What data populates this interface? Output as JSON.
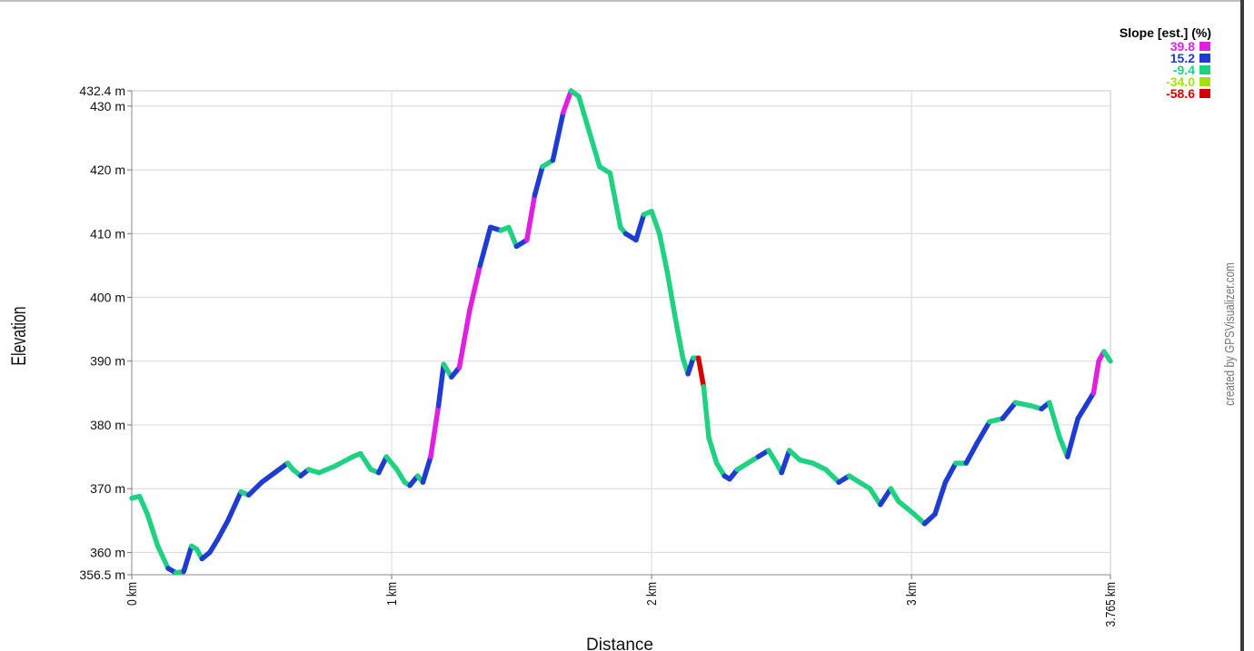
{
  "credit": "created by GPSVisualizer.com",
  "chart_data": {
    "type": "line",
    "xlabel": "Distance",
    "ylabel": "Elevation",
    "xlim": [
      0,
      3.765
    ],
    "ylim": [
      356.5,
      432.4
    ],
    "x_ticks": [
      {
        "value": 0,
        "label": "0 km"
      },
      {
        "value": 1,
        "label": "1 km"
      },
      {
        "value": 2,
        "label": "2 km"
      },
      {
        "value": 3,
        "label": "3 km"
      },
      {
        "value": 3.765,
        "label": "3.765 km"
      }
    ],
    "y_ticks": [
      {
        "value": 356.5,
        "label": "356.5 m"
      },
      {
        "value": 360,
        "label": "360 m"
      },
      {
        "value": 370,
        "label": "370 m"
      },
      {
        "value": 380,
        "label": "380 m"
      },
      {
        "value": 390,
        "label": "390 m"
      },
      {
        "value": 400,
        "label": "400 m"
      },
      {
        "value": 410,
        "label": "410 m"
      },
      {
        "value": 420,
        "label": "420 m"
      },
      {
        "value": 430,
        "label": "430 m"
      },
      {
        "value": 432.4,
        "label": "432.4 m"
      }
    ],
    "grid": true,
    "legend": {
      "title": "Slope [est.] (%)",
      "placement": "top-right",
      "entries": [
        {
          "label": "39.8",
          "color": "#e020e0"
        },
        {
          "label": "15.2",
          "color": "#1e3cd2"
        },
        {
          "label": "-9.4",
          "color": "#1ed282"
        },
        {
          "label": "-34.0",
          "color": "#a6e014"
        },
        {
          "label": "-58.6",
          "color": "#d40000"
        }
      ]
    },
    "series": [
      {
        "x": [
          0,
          0.03,
          0.06,
          0.1,
          0.14,
          0.17,
          0.2,
          0.23,
          0.25,
          0.27,
          0.3,
          0.33,
          0.37,
          0.42,
          0.45,
          0.5,
          0.55,
          0.6,
          0.62,
          0.65,
          0.68,
          0.72,
          0.78,
          0.85,
          0.88,
          0.92,
          0.95,
          0.98,
          1.02,
          1.05,
          1.07,
          1.1,
          1.12,
          1.15,
          1.18,
          1.2,
          1.23,
          1.26,
          1.3,
          1.34,
          1.38,
          1.42,
          1.45,
          1.48,
          1.52,
          1.55,
          1.58,
          1.62,
          1.66,
          1.69,
          1.72,
          1.76,
          1.8,
          1.84,
          1.88,
          1.9,
          1.94,
          1.97,
          2.0,
          2.03,
          2.06,
          2.09,
          2.12,
          2.14,
          2.16,
          2.18,
          2.2,
          2.22,
          2.25,
          2.28,
          2.3,
          2.33,
          2.37,
          2.41,
          2.45,
          2.48,
          2.5,
          2.53,
          2.57,
          2.62,
          2.67,
          2.72,
          2.76,
          2.8,
          2.84,
          2.88,
          2.92,
          2.95,
          2.98,
          3.01,
          3.05,
          3.09,
          3.13,
          3.17,
          3.21,
          3.25,
          3.3,
          3.35,
          3.4,
          3.46,
          3.5,
          3.53,
          3.57,
          3.6,
          3.64,
          3.67,
          3.7,
          3.72,
          3.74,
          3.765
        ],
        "y": [
          368.5,
          368.8,
          366.0,
          361.0,
          357.5,
          356.8,
          357.0,
          361.0,
          360.5,
          359.0,
          360.0,
          362.0,
          365.0,
          369.5,
          369.0,
          371.0,
          372.5,
          374.0,
          373.0,
          372.0,
          373.0,
          372.5,
          373.5,
          375.0,
          375.5,
          373.0,
          372.5,
          375.0,
          373.0,
          371.0,
          370.5,
          372.0,
          371.0,
          375.0,
          383.0,
          389.5,
          387.5,
          389.0,
          398.0,
          405.0,
          411.0,
          410.5,
          411.0,
          408.0,
          409.0,
          416.0,
          420.5,
          421.5,
          429.0,
          432.4,
          431.5,
          426.0,
          420.5,
          419.5,
          411.0,
          410.0,
          409.0,
          413.0,
          413.5,
          410.0,
          404.0,
          397.0,
          390.5,
          388.0,
          390.5,
          390.5,
          386.0,
          378.0,
          374.0,
          372.0,
          371.5,
          373.0,
          374.0,
          375.0,
          376.0,
          374.0,
          372.5,
          376.0,
          374.5,
          374.0,
          373.0,
          371.0,
          372.0,
          371.0,
          370.0,
          367.5,
          370.0,
          368.0,
          367.0,
          366.0,
          364.5,
          366.0,
          371.0,
          374.0,
          374.0,
          377.0,
          380.5,
          381.0,
          383.5,
          383.0,
          382.5,
          383.5,
          378.0,
          375.0,
          381.0,
          383.0,
          385.0,
          390.0,
          391.5,
          390.0
        ],
        "slope": [
          -9.4,
          -34.0,
          -9.4,
          -9.4,
          15.2,
          -9.4,
          15.2,
          -9.4,
          -9.4,
          15.2,
          15.2,
          15.2,
          15.2,
          -9.4,
          15.2,
          15.2,
          15.2,
          -9.4,
          -9.4,
          15.2,
          -9.4,
          -9.4,
          -9.4,
          -9.4,
          -34.0,
          -9.4,
          15.2,
          -9.4,
          -9.4,
          -34.0,
          15.2,
          -9.4,
          15.2,
          39.8,
          15.2,
          -9.4,
          15.2,
          39.8,
          39.8,
          15.2,
          15.2,
          -34.0,
          -9.4,
          15.2,
          39.8,
          15.2,
          -9.4,
          15.2,
          39.8,
          -9.4,
          -9.4,
          -9.4,
          -34.0,
          -34.0,
          -9.4,
          15.2,
          15.2,
          -9.4,
          -34.0,
          -34.0,
          -34.0,
          -9.4,
          -9.4,
          15.2,
          -34.0,
          -58.6,
          -34.0,
          -9.4,
          -9.4,
          15.2,
          15.2,
          -9.4,
          -9.4,
          15.2,
          -9.4,
          -9.4,
          15.2,
          -9.4,
          -9.4,
          -9.4,
          -9.4,
          15.2,
          -9.4,
          -9.4,
          -34.0,
          15.2,
          -9.4,
          -9.4,
          -9.4,
          -9.4,
          15.2,
          15.2,
          15.2,
          -9.4,
          15.2,
          15.2,
          -9.4,
          15.2,
          -9.4,
          -9.4,
          15.2,
          -34.0,
          -9.4,
          15.2,
          15.2,
          15.2,
          39.8,
          39.8,
          -34.0
        ]
      }
    ]
  }
}
